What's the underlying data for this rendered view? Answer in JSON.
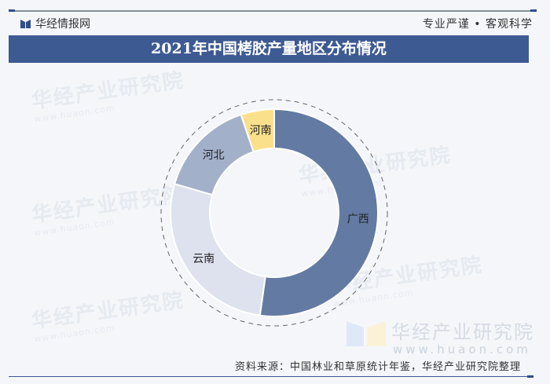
{
  "header": {
    "brand": "华经情报网",
    "slogan": "专业严谨 • 客观科学",
    "title": "2021年中国栲胶产量地区分布情况"
  },
  "watermark": {
    "cn": "华经产业研究院",
    "url": "www.huaon.com"
  },
  "footer": {
    "source": "资料来源：中国林业和草原统计年鉴，华经产业研究院整理"
  },
  "colors": {
    "title_bg": "#3d5a93",
    "guangxi": "#637ba3",
    "yunnan": "#dde2ee",
    "hebei": "#a3b0ca",
    "henan": "#fbe08c"
  },
  "chart_data": {
    "type": "pie",
    "subtype": "donut",
    "title": "2021年中国栲胶产量地区分布情况",
    "categories": [
      "广西",
      "云南",
      "河北",
      "河南"
    ],
    "values": [
      52.2,
      27.3,
      15.3,
      5.2
    ],
    "unit": "%",
    "note": "Values estimated from slice angles; no data labels shown",
    "start_angle": "12 o'clock, clockwise",
    "legend": "none (labels inside slices)"
  }
}
